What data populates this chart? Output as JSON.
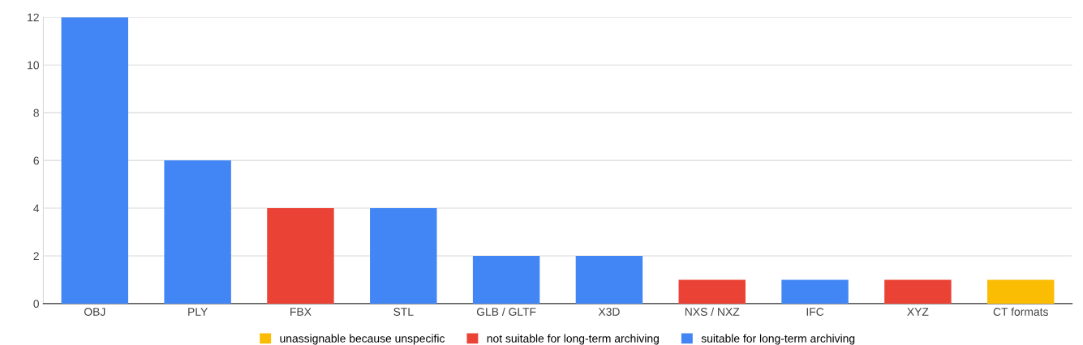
{
  "chart_data": {
    "type": "bar",
    "stacked": true,
    "categories": [
      "OBJ",
      "PLY",
      "FBX",
      "STL",
      "GLB / GLTF",
      "X3D",
      "NXS / NXZ",
      "IFC",
      "XYZ",
      "CT formats"
    ],
    "series": [
      {
        "name": "unassignable because unspecific",
        "color": "#fbbc04",
        "values": [
          null,
          null,
          null,
          null,
          null,
          null,
          null,
          null,
          null,
          1
        ]
      },
      {
        "name": "not suitable for long-term archiving",
        "color": "#ea4335",
        "values": [
          null,
          null,
          4,
          null,
          null,
          null,
          1,
          null,
          1,
          null
        ]
      },
      {
        "name": "suitable for long-term archiving",
        "color": "#4285f4",
        "values": [
          12,
          6,
          null,
          4,
          2,
          2,
          null,
          1,
          null,
          null
        ]
      }
    ],
    "ylim": [
      0,
      12
    ],
    "yticks": [
      0,
      2,
      4,
      6,
      8,
      10,
      12
    ],
    "grid": "y",
    "legend": "bottom"
  }
}
